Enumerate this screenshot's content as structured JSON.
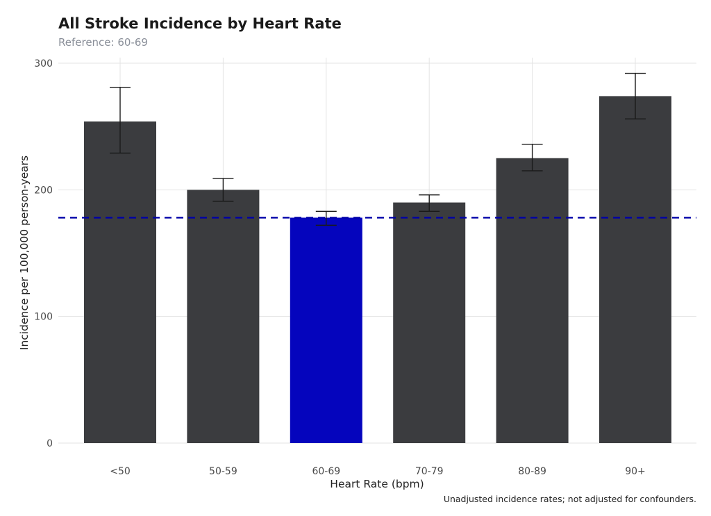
{
  "chart_data": {
    "type": "bar",
    "title": "All Stroke Incidence by Heart Rate",
    "subtitle": "Reference: 60-69",
    "xlabel": "Heart Rate (bpm)",
    "ylabel": "Incidence per 100,000 person-years",
    "caption": "Unadjusted incidence rates; not adjusted for confounders.",
    "categories": [
      "<50",
      "50-59",
      "60-69",
      "70-79",
      "80-89",
      "90+"
    ],
    "values": [
      254,
      200,
      178,
      190,
      225,
      274
    ],
    "ci_lower": [
      229,
      191,
      172,
      183,
      215,
      256
    ],
    "ci_upper": [
      281,
      209,
      183,
      196,
      236,
      292
    ],
    "reference_category": "60-69",
    "reference_value": 178,
    "ylim": [
      0,
      300
    ],
    "yticks": [
      0,
      100,
      200,
      300
    ],
    "grid": true,
    "legend": "none",
    "colors": {
      "bar": "#3b3c3f",
      "reference_bar": "#0505bd",
      "reference_line": "#0000a8",
      "error_bar": "#1a1a1a"
    }
  }
}
